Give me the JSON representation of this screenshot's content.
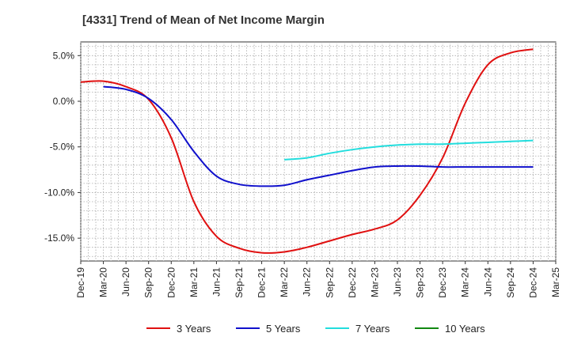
{
  "chart_data": {
    "type": "line",
    "title": "[4331]  Trend of Mean of Net Income Margin",
    "xlabel": "",
    "ylabel": "",
    "ylim": [
      -17.5,
      6.5
    ],
    "yticks": [
      "5.0%",
      "0.0%",
      "-5.0%",
      "-10.0%",
      "-15.0%"
    ],
    "ytick_values": [
      5,
      0,
      -5,
      -10,
      -15
    ],
    "xticks": [
      "Dec-19",
      "Mar-20",
      "Jun-20",
      "Sep-20",
      "Dec-20",
      "Mar-21",
      "Jun-21",
      "Sep-21",
      "Dec-21",
      "Mar-22",
      "Jun-22",
      "Sep-22",
      "Dec-22",
      "Mar-23",
      "Jun-23",
      "Sep-23",
      "Dec-23",
      "Mar-24",
      "Jun-24",
      "Sep-24",
      "Dec-24",
      "Mar-25"
    ],
    "grid": true,
    "legend_position": "bottom",
    "series": [
      {
        "name": "3 Years",
        "color": "#e01010",
        "x": [
          "Dec-19",
          "Mar-20",
          "Jun-20",
          "Sep-20",
          "Dec-20",
          "Mar-21",
          "Jun-21",
          "Sep-21",
          "Dec-21",
          "Mar-22",
          "Jun-22",
          "Sep-22",
          "Dec-22",
          "Mar-23",
          "Jun-23",
          "Sep-23",
          "Dec-23",
          "Mar-24",
          "Jun-24",
          "Sep-24",
          "Dec-24"
        ],
        "values": [
          2.1,
          2.2,
          1.6,
          0.2,
          -4.0,
          -11.0,
          -14.8,
          -16.1,
          -16.6,
          -16.5,
          -16.0,
          -15.3,
          -14.6,
          -14.0,
          -13.0,
          -10.3,
          -6.2,
          -0.2,
          4.0,
          5.3,
          5.7
        ]
      },
      {
        "name": "5 Years",
        "color": "#1010cc",
        "x": [
          "Mar-20",
          "Jun-20",
          "Sep-20",
          "Dec-20",
          "Mar-21",
          "Jun-21",
          "Sep-21",
          "Dec-21",
          "Mar-22",
          "Jun-22",
          "Sep-22",
          "Dec-22",
          "Mar-23",
          "Jun-23",
          "Sep-23",
          "Dec-23",
          "Mar-24",
          "Jun-24",
          "Sep-24",
          "Dec-24"
        ],
        "values": [
          1.6,
          1.3,
          0.3,
          -2.0,
          -5.5,
          -8.2,
          -9.1,
          -9.3,
          -9.2,
          -8.6,
          -8.1,
          -7.6,
          -7.2,
          -7.1,
          -7.1,
          -7.2,
          -7.2,
          -7.2,
          -7.2,
          -7.2
        ]
      },
      {
        "name": "7 Years",
        "color": "#22dddd",
        "x": [
          "Mar-22",
          "Jun-22",
          "Sep-22",
          "Dec-22",
          "Mar-23",
          "Jun-23",
          "Sep-23",
          "Dec-23",
          "Mar-24",
          "Jun-24",
          "Sep-24",
          "Dec-24"
        ],
        "values": [
          -6.4,
          -6.2,
          -5.7,
          -5.3,
          -5.0,
          -4.8,
          -4.7,
          -4.7,
          -4.6,
          -4.5,
          -4.4,
          -4.3
        ]
      },
      {
        "name": "10 Years",
        "color": "#118811",
        "x": [],
        "values": []
      }
    ]
  }
}
